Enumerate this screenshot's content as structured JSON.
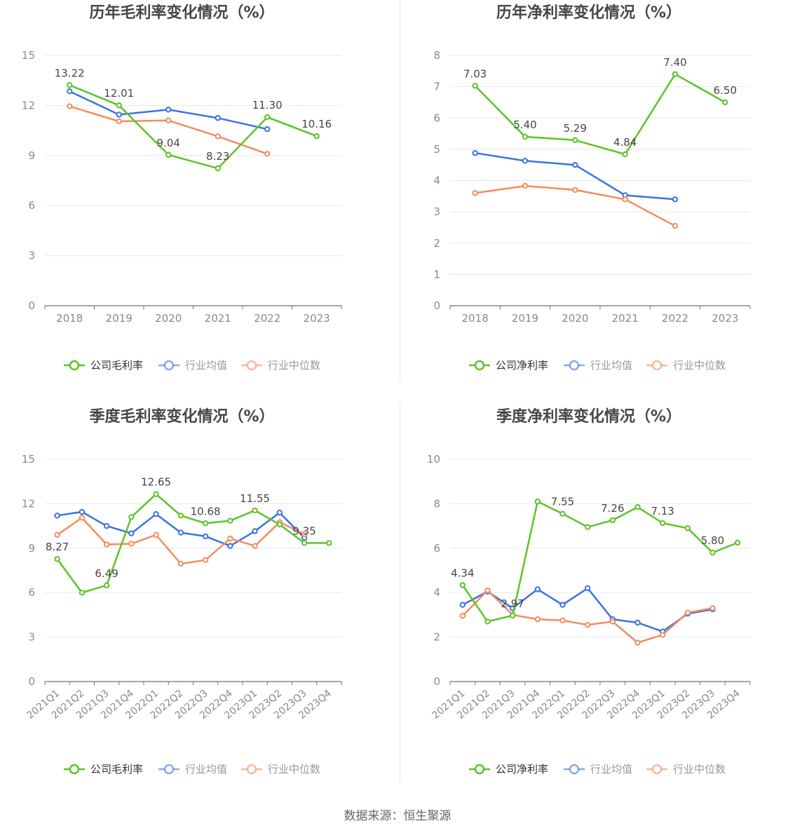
{
  "source": "数据来源：恒生聚源",
  "colors": {
    "company": "#5cc427",
    "avg": "#3a73e0",
    "median": "#f58c5e",
    "axis": "#6e7079",
    "grid": "#e4e8f1"
  },
  "chart_data": [
    {
      "type": "line",
      "title": "历年毛利率变化情况（%）",
      "categories": [
        "2018",
        "2019",
        "2020",
        "2021",
        "2022",
        "2023"
      ],
      "ylim": [
        0,
        15
      ],
      "yticks": [
        0,
        3,
        6,
        9,
        12,
        15
      ],
      "series": [
        {
          "name": "公司毛利率",
          "values": [
            13.22,
            12.01,
            9.04,
            8.23,
            11.3,
            10.16
          ],
          "labels": [
            "13.22",
            "12.01",
            "9.04",
            "8.23",
            "11.30",
            "10.16"
          ]
        },
        {
          "name": "行业均值",
          "values": [
            12.85,
            11.45,
            11.75,
            11.25,
            10.58,
            null
          ]
        },
        {
          "name": "行业中位数",
          "values": [
            11.95,
            11.05,
            11.1,
            10.15,
            9.1,
            null
          ]
        }
      ],
      "grid": true,
      "legend": "bottom"
    },
    {
      "type": "line",
      "title": "历年净利率变化情况（%）",
      "categories": [
        "2018",
        "2019",
        "2020",
        "2021",
        "2022",
        "2023"
      ],
      "ylim": [
        0,
        8
      ],
      "yticks": [
        0,
        1,
        2,
        3,
        4,
        5,
        6,
        7,
        8
      ],
      "series": [
        {
          "name": "公司净利率",
          "values": [
            7.03,
            5.4,
            5.29,
            4.84,
            7.4,
            6.5
          ],
          "labels": [
            "7.03",
            "5.40",
            "5.29",
            "4.84",
            "7.40",
            "6.50"
          ]
        },
        {
          "name": "行业均值",
          "values": [
            4.88,
            4.63,
            4.5,
            3.53,
            3.4,
            null
          ]
        },
        {
          "name": "行业中位数",
          "values": [
            3.6,
            3.83,
            3.7,
            3.4,
            2.55,
            null
          ]
        }
      ],
      "grid": true,
      "legend": "bottom"
    },
    {
      "type": "line",
      "title": "季度毛利率变化情况（%）",
      "categories": [
        "2021Q1",
        "2021Q2",
        "2021Q3",
        "2021Q4",
        "2022Q1",
        "2022Q2",
        "2022Q3",
        "2022Q4",
        "2023Q1",
        "2023Q2",
        "2023Q3",
        "2023Q4"
      ],
      "ylim": [
        0,
        15
      ],
      "yticks": [
        0,
        3,
        6,
        9,
        12,
        15
      ],
      "series": [
        {
          "name": "公司毛利率",
          "values": [
            8.27,
            6.0,
            6.49,
            11.1,
            12.65,
            11.2,
            10.68,
            10.85,
            11.55,
            10.6,
            9.35,
            9.35
          ],
          "labels": [
            "8.27",
            "",
            "6.49",
            "",
            "12.65",
            "",
            "10.68",
            "",
            "11.55",
            "",
            "9.35",
            ""
          ]
        },
        {
          "name": "行业均值",
          "values": [
            11.2,
            11.45,
            10.5,
            10.0,
            11.3,
            10.05,
            9.8,
            9.15,
            10.15,
            11.4,
            9.7,
            null
          ]
        },
        {
          "name": "行业中位数",
          "values": [
            9.9,
            11.05,
            9.25,
            9.3,
            9.9,
            7.95,
            8.2,
            9.65,
            9.15,
            10.75,
            9.95,
            null
          ]
        }
      ],
      "grid": true,
      "legend": "bottom"
    },
    {
      "type": "line",
      "title": "季度净利率变化情况（%）",
      "categories": [
        "2021Q1",
        "2021Q2",
        "2021Q3",
        "2021Q4",
        "2022Q1",
        "2022Q2",
        "2022Q3",
        "2022Q4",
        "2023Q1",
        "2023Q2",
        "2023Q3",
        "2023Q4"
      ],
      "ylim": [
        0,
        10
      ],
      "yticks": [
        0,
        2,
        4,
        6,
        8,
        10
      ],
      "series": [
        {
          "name": "公司净利率",
          "values": [
            4.34,
            2.7,
            2.97,
            8.1,
            7.55,
            6.95,
            7.26,
            7.85,
            7.13,
            6.9,
            5.8,
            6.25
          ],
          "labels": [
            "4.34",
            "",
            "2.97",
            "",
            "7.55",
            "",
            "7.26",
            "",
            "7.13",
            "",
            "5.80",
            ""
          ]
        },
        {
          "name": "行业均值",
          "values": [
            3.45,
            4.05,
            3.3,
            4.15,
            3.45,
            4.2,
            2.8,
            2.65,
            2.25,
            3.05,
            3.25,
            null
          ]
        },
        {
          "name": "行业中位数",
          "values": [
            2.95,
            4.1,
            3.0,
            2.8,
            2.75,
            2.55,
            2.7,
            1.75,
            2.1,
            3.1,
            3.3,
            null
          ]
        }
      ],
      "grid": true,
      "legend": "bottom"
    }
  ]
}
